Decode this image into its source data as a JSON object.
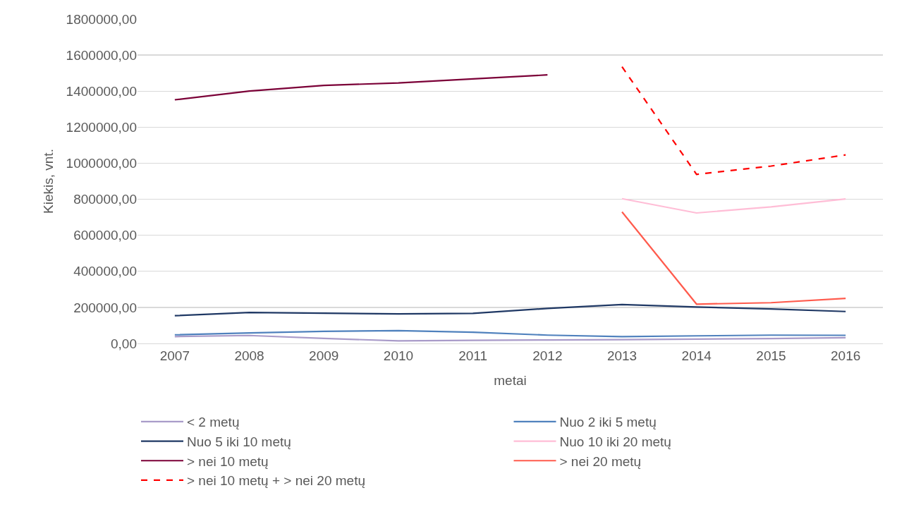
{
  "chart_data": {
    "type": "line",
    "xlabel": "metai",
    "ylabel": "Kiekis, vnt.",
    "categories": [
      "2007",
      "2008",
      "2009",
      "2010",
      "2011",
      "2012",
      "2013",
      "2014",
      "2015",
      "2016"
    ],
    "ylim": [
      0,
      1800000
    ],
    "yticks": [
      {
        "value": 0,
        "label": "0,00"
      },
      {
        "value": 200000,
        "label": "200000,00"
      },
      {
        "value": 400000,
        "label": "400000,00"
      },
      {
        "value": 600000,
        "label": "600000,00"
      },
      {
        "value": 800000,
        "label": "800000,00"
      },
      {
        "value": 1000000,
        "label": "1000000,00"
      },
      {
        "value": 1200000,
        "label": "1200000,00"
      },
      {
        "value": 1400000,
        "label": "1400000,00"
      },
      {
        "value": 1600000,
        "label": "1600000,00"
      },
      {
        "value": 1800000,
        "label": "1800000,00"
      }
    ],
    "grid": "y",
    "legend": "bottom",
    "marker": "none",
    "line_style": "solid",
    "series": [
      {
        "name": "< 2 metų",
        "color": "#a99bc9",
        "values": [
          38000,
          44000,
          28000,
          14000,
          17000,
          19000,
          21000,
          24000,
          27000,
          32000
        ]
      },
      {
        "name": "Nuo 2 iki 5 metų",
        "color": "#4f81bd",
        "values": [
          48000,
          58000,
          67000,
          71000,
          62000,
          46000,
          38000,
          42000,
          46000,
          45000
        ]
      },
      {
        "name": "Nuo 5 iki 10 metų",
        "color": "#1f3864",
        "values": [
          154000,
          172000,
          168000,
          164000,
          167000,
          194000,
          216000,
          202000,
          191000,
          177000
        ]
      },
      {
        "name": "Nuo 10 iki 20 metų",
        "color": "#ffbdd6",
        "values": [
          null,
          null,
          null,
          null,
          null,
          null,
          803000,
          724000,
          758000,
          802000
        ]
      },
      {
        "name": "> nei 10 metų",
        "color": "#7b0037",
        "values": [
          1352000,
          1400000,
          1432000,
          1445000,
          1468000,
          1490000,
          null,
          null,
          null,
          null
        ]
      },
      {
        "name": "> nei 20 metų",
        "color": "#ff5b4d",
        "values": [
          null,
          null,
          null,
          null,
          null,
          null,
          730000,
          218000,
          226000,
          250000
        ]
      },
      {
        "name": "> nei 10 metų + > nei 20 metų",
        "color": "#ff0000",
        "line_style": "dashed",
        "values": [
          null,
          null,
          null,
          null,
          null,
          null,
          1535000,
          938000,
          984000,
          1046000
        ]
      }
    ]
  }
}
